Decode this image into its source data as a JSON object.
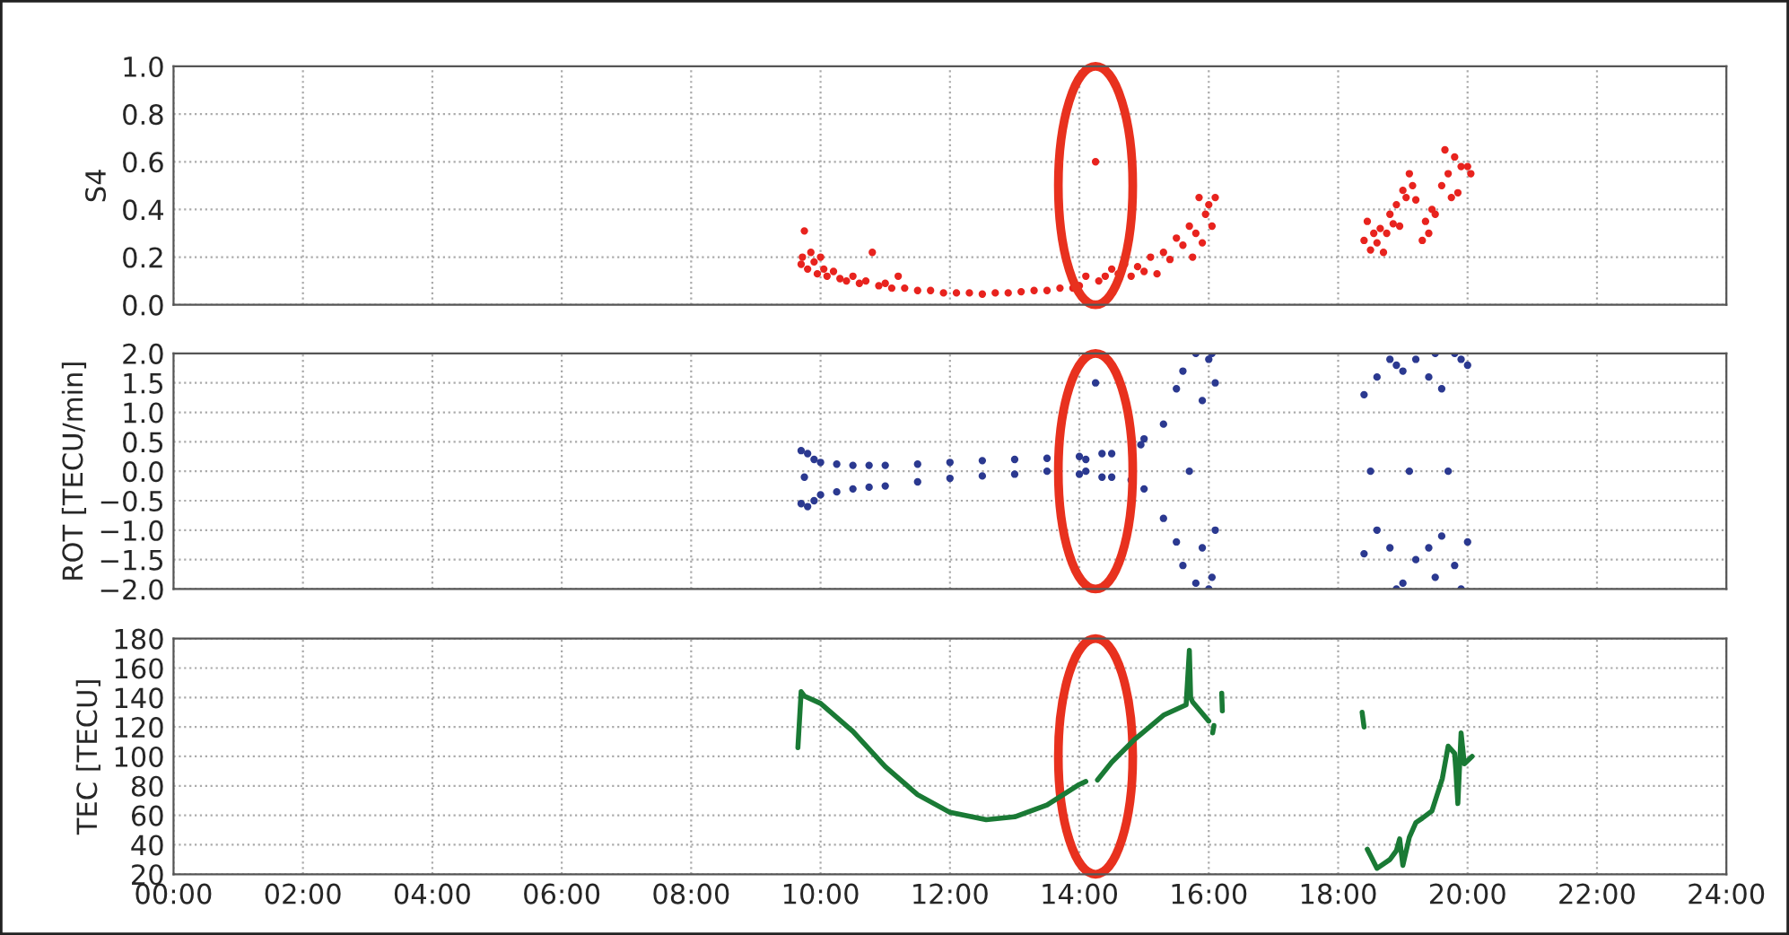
{
  "chart_data": [
    {
      "type": "scatter",
      "ylabel": "S4",
      "marker": "circle",
      "grid": true,
      "tick_labels": "y",
      "xlim": [
        0,
        24
      ],
      "xticks": [
        0,
        2,
        4,
        6,
        8,
        10,
        12,
        14,
        16,
        18,
        20,
        22,
        24
      ],
      "ylim": [
        0,
        1
      ],
      "yticks": [
        {
          "value": 0,
          "label": "0.0"
        },
        {
          "value": 0.2,
          "label": "0.2"
        },
        {
          "value": 0.4,
          "label": "0.4"
        },
        {
          "value": 0.6,
          "label": "0.6"
        },
        {
          "value": 0.8,
          "label": "0.8"
        },
        {
          "value": 1,
          "label": "1.0"
        }
      ],
      "series": [
        {
          "color": "#e8231e",
          "x": [
            9.7,
            9.72,
            9.75,
            9.8,
            9.85,
            9.9,
            9.95,
            10.0,
            10.05,
            10.1,
            10.2,
            10.3,
            10.4,
            10.5,
            10.6,
            10.7,
            10.8,
            10.9,
            11.0,
            11.1,
            11.2,
            11.3,
            11.5,
            11.7,
            11.9,
            12.1,
            12.3,
            12.5,
            12.7,
            12.9,
            13.1,
            13.3,
            13.5,
            13.7,
            13.9,
            14.0,
            14.1,
            14.25,
            14.3,
            14.4,
            14.5,
            14.6,
            14.7,
            14.8,
            14.9,
            15.0,
            15.1,
            15.2,
            15.3,
            15.4,
            15.5,
            15.6,
            15.7,
            15.75,
            15.8,
            15.85,
            15.9,
            15.95,
            16.0,
            16.05,
            16.1,
            18.4,
            18.45,
            18.5,
            18.55,
            18.6,
            18.65,
            18.7,
            18.75,
            18.8,
            18.85,
            18.9,
            18.95,
            19.0,
            19.05,
            19.1,
            19.15,
            19.2,
            19.3,
            19.35,
            19.4,
            19.45,
            19.5,
            19.6,
            19.65,
            19.7,
            19.75,
            19.8,
            19.85,
            19.9,
            20.0,
            20.05
          ],
          "values": [
            0.17,
            0.2,
            0.31,
            0.15,
            0.22,
            0.18,
            0.13,
            0.2,
            0.15,
            0.12,
            0.14,
            0.11,
            0.1,
            0.12,
            0.09,
            0.1,
            0.22,
            0.08,
            0.09,
            0.07,
            0.12,
            0.07,
            0.06,
            0.06,
            0.05,
            0.05,
            0.05,
            0.045,
            0.05,
            0.05,
            0.055,
            0.06,
            0.06,
            0.07,
            0.07,
            0.08,
            0.12,
            0.6,
            0.1,
            0.12,
            0.15,
            0.13,
            0.17,
            0.12,
            0.16,
            0.14,
            0.2,
            0.13,
            0.22,
            0.19,
            0.28,
            0.25,
            0.33,
            0.2,
            0.3,
            0.45,
            0.26,
            0.38,
            0.42,
            0.33,
            0.45,
            0.27,
            0.35,
            0.23,
            0.3,
            0.26,
            0.32,
            0.22,
            0.3,
            0.38,
            0.34,
            0.42,
            0.33,
            0.48,
            0.45,
            0.55,
            0.5,
            0.44,
            0.27,
            0.35,
            0.3,
            0.4,
            0.38,
            0.5,
            0.65,
            0.55,
            0.45,
            0.62,
            0.47,
            0.58,
            0.58,
            0.55
          ]
        }
      ]
    },
    {
      "type": "scatter",
      "ylabel": "ROT [TECU/min]",
      "marker": "circle",
      "grid": true,
      "tick_labels": "y",
      "xlim": [
        0,
        24
      ],
      "xticks": [
        0,
        2,
        4,
        6,
        8,
        10,
        12,
        14,
        16,
        18,
        20,
        22,
        24
      ],
      "ylim": [
        -2,
        2
      ],
      "yticks": [
        {
          "value": -2,
          "label": "−2.0"
        },
        {
          "value": -1.5,
          "label": "−1.5"
        },
        {
          "value": -1,
          "label": "−1.0"
        },
        {
          "value": -0.5,
          "label": "−0.5"
        },
        {
          "value": 0,
          "label": "0.0"
        },
        {
          "value": 0.5,
          "label": "0.5"
        },
        {
          "value": 1,
          "label": "1.0"
        },
        {
          "value": 1.5,
          "label": "1.5"
        },
        {
          "value": 2,
          "label": "2.0"
        }
      ],
      "series": [
        {
          "color": "#2b3990",
          "x": [
            9.7,
            9.7,
            9.75,
            9.8,
            9.8,
            9.9,
            9.9,
            10.0,
            10.0,
            10.25,
            10.25,
            10.5,
            10.5,
            10.75,
            10.75,
            11.0,
            11.0,
            11.5,
            11.5,
            12.0,
            12.0,
            12.5,
            12.5,
            13.0,
            13.0,
            13.5,
            13.5,
            14.0,
            14.0,
            14.1,
            14.1,
            14.25,
            14.35,
            14.35,
            14.5,
            14.5,
            14.95,
            14.8,
            15.0,
            15.0,
            15.3,
            15.3,
            15.5,
            15.5,
            15.6,
            15.6,
            15.7,
            15.8,
            15.8,
            15.9,
            15.9,
            16.0,
            16.0,
            16.05,
            16.05,
            16.1,
            16.1,
            18.4,
            18.4,
            18.5,
            18.6,
            18.6,
            18.8,
            18.8,
            18.9,
            18.9,
            19.0,
            19.0,
            19.1,
            19.2,
            19.2,
            19.4,
            19.4,
            19.5,
            19.5,
            19.6,
            19.6,
            19.7,
            19.8,
            19.8,
            19.9,
            19.9,
            20.0,
            20.0
          ],
          "values": [
            0.35,
            -0.55,
            -0.1,
            0.3,
            -0.6,
            0.2,
            -0.5,
            0.15,
            -0.4,
            0.12,
            -0.35,
            0.1,
            -0.3,
            0.1,
            -0.27,
            0.1,
            -0.25,
            0.12,
            -0.18,
            0.15,
            -0.12,
            0.18,
            -0.08,
            0.2,
            -0.05,
            0.22,
            0.0,
            0.25,
            -0.05,
            0.2,
            0.0,
            1.5,
            0.3,
            -0.1,
            0.3,
            -0.1,
            0.45,
            -0.15,
            0.55,
            -0.3,
            0.8,
            -0.8,
            1.4,
            -1.2,
            1.7,
            -1.6,
            0.0,
            2.0,
            -1.9,
            1.2,
            -1.3,
            1.9,
            -2.0,
            2.0,
            -1.8,
            1.5,
            -1.0,
            1.3,
            -1.4,
            0.0,
            1.6,
            -1.0,
            1.9,
            -1.3,
            1.8,
            -2.0,
            1.7,
            -1.9,
            0.0,
            1.9,
            -1.5,
            1.6,
            -1.3,
            2.0,
            -1.8,
            1.4,
            -1.1,
            0.0,
            2.0,
            -1.6,
            1.9,
            -2.0,
            1.8,
            -1.2
          ]
        }
      ]
    },
    {
      "type": "line",
      "ylabel": "TEC [TECU]",
      "grid": true,
      "xlim": [
        0,
        24
      ],
      "xticks": [
        {
          "value": 0,
          "label": "00:00"
        },
        {
          "value": 2,
          "label": "02:00"
        },
        {
          "value": 4,
          "label": "04:00"
        },
        {
          "value": 6,
          "label": "06:00"
        },
        {
          "value": 8,
          "label": "08:00"
        },
        {
          "value": 10,
          "label": "10:00"
        },
        {
          "value": 12,
          "label": "12:00"
        },
        {
          "value": 14,
          "label": "14:00"
        },
        {
          "value": 16,
          "label": "16:00"
        },
        {
          "value": 18,
          "label": "18:00"
        },
        {
          "value": 20,
          "label": "20:00"
        },
        {
          "value": 22,
          "label": "22:00"
        },
        {
          "value": 24,
          "label": "24:00"
        }
      ],
      "ylim": [
        20,
        180
      ],
      "yticks": [
        20,
        40,
        60,
        80,
        100,
        120,
        140,
        160,
        180
      ],
      "series": [
        {
          "color": "#1a7a35",
          "x": [
            9.65,
            9.7,
            9.75,
            10.0,
            10.5,
            11.0,
            11.5,
            12.0,
            12.56,
            13.0,
            13.5,
            14.0,
            14.1,
            14.2,
            14.28,
            14.5,
            14.84,
            15.3,
            15.65,
            15.7,
            15.72,
            15.75,
            16.0,
            16.03,
            16.06,
            16.08,
            16.15,
            16.2,
            16.21,
            18.35,
            18.37,
            18.4,
            18.43,
            18.45,
            18.6,
            18.8,
            18.9,
            18.95,
            19.0,
            19.1,
            19.2,
            19.3,
            19.45,
            19.61,
            19.7,
            19.8,
            19.82,
            19.85,
            19.9,
            19.95,
            20.07
          ],
          "values": [
            106,
            144,
            141,
            136,
            117,
            93,
            74,
            62,
            57,
            59,
            67,
            81,
            83,
            null,
            84,
            96,
            111,
            128,
            135,
            172,
            140,
            137,
            124,
            null,
            116,
            121,
            null,
            143,
            131,
            null,
            130,
            120,
            null,
            37,
            24,
            30,
            36,
            44,
            26,
            45,
            55,
            58,
            63,
            85,
            107,
            102,
            90,
            68,
            116,
            95,
            100
          ]
        }
      ]
    }
  ]
}
